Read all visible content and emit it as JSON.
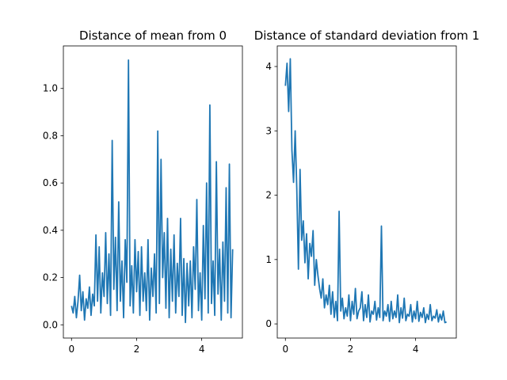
{
  "chart_data": [
    {
      "type": "line",
      "title": "Distance of mean from 0",
      "xlabel": "",
      "ylabel": "",
      "xlim": [
        -0.25,
        5.25
      ],
      "ylim": [
        -0.056,
        1.18
      ],
      "xticks": [
        0,
        2,
        4
      ],
      "xtick_labels": [
        "0",
        "2",
        "4"
      ],
      "yticks": [
        0.0,
        0.2,
        0.4,
        0.6,
        0.8,
        1.0
      ],
      "ytick_labels": [
        "0.0",
        "0.2",
        "0.4",
        "0.6",
        "0.8",
        "1.0"
      ],
      "grid": false,
      "color": "#1f77b4",
      "series": [
        {
          "x": [
            0.0,
            0.05,
            0.1,
            0.15,
            0.2,
            0.25,
            0.3,
            0.35,
            0.4,
            0.45,
            0.5,
            0.55,
            0.6,
            0.65,
            0.7,
            0.75,
            0.8,
            0.85,
            0.9,
            0.95,
            1.0,
            1.05,
            1.1,
            1.15,
            1.2,
            1.25,
            1.3,
            1.35,
            1.4,
            1.45,
            1.5,
            1.55,
            1.6,
            1.65,
            1.7,
            1.75,
            1.8,
            1.85,
            1.9,
            1.95,
            2.0,
            2.05,
            2.1,
            2.15,
            2.2,
            2.25,
            2.3,
            2.35,
            2.4,
            2.45,
            2.5,
            2.55,
            2.6,
            2.65,
            2.7,
            2.75,
            2.8,
            2.85,
            2.9,
            2.95,
            3.0,
            3.05,
            3.1,
            3.15,
            3.2,
            3.25,
            3.3,
            3.35,
            3.4,
            3.45,
            3.5,
            3.55,
            3.6,
            3.65,
            3.7,
            3.75,
            3.8,
            3.85,
            3.9,
            3.95,
            4.0,
            4.05,
            4.1,
            4.15,
            4.2,
            4.25,
            4.3,
            4.35,
            4.4,
            4.45,
            4.5,
            4.55,
            4.6,
            4.65,
            4.7,
            4.75,
            4.8,
            4.85,
            4.9,
            4.95
          ],
          "values": [
            0.08,
            0.05,
            0.12,
            0.03,
            0.1,
            0.21,
            0.06,
            0.14,
            0.02,
            0.11,
            0.07,
            0.16,
            0.04,
            0.13,
            0.08,
            0.38,
            0.1,
            0.33,
            0.05,
            0.22,
            0.12,
            0.39,
            0.09,
            0.3,
            0.04,
            0.78,
            0.15,
            0.37,
            0.06,
            0.52,
            0.1,
            0.27,
            0.03,
            0.36,
            0.18,
            1.12,
            0.08,
            0.25,
            0.05,
            0.36,
            0.14,
            0.31,
            0.04,
            0.33,
            0.1,
            0.22,
            0.06,
            0.36,
            0.02,
            0.24,
            0.12,
            0.3,
            0.05,
            0.82,
            0.09,
            0.7,
            0.2,
            0.39,
            0.07,
            0.45,
            0.03,
            0.32,
            0.1,
            0.38,
            0.05,
            0.26,
            0.12,
            0.45,
            0.04,
            0.28,
            0.01,
            0.26,
            0.08,
            0.27,
            0.03,
            0.33,
            0.15,
            0.53,
            0.06,
            0.22,
            0.02,
            0.42,
            0.11,
            0.6,
            0.05,
            0.93,
            0.09,
            0.27,
            0.04,
            0.69,
            0.13,
            0.32,
            0.02,
            0.35,
            0.1,
            0.58,
            0.05,
            0.68,
            0.03,
            0.32
          ]
        }
      ]
    },
    {
      "type": "line",
      "title": "Distance of standard deviation from 1",
      "xlabel": "",
      "ylabel": "",
      "xlim": [
        -0.25,
        5.25
      ],
      "ylim": [
        -0.22,
        4.32
      ],
      "xticks": [
        0,
        2,
        4
      ],
      "xtick_labels": [
        "0",
        "2",
        "4"
      ],
      "yticks": [
        0,
        1,
        2,
        3,
        4
      ],
      "ytick_labels": [
        "0",
        "1",
        "2",
        "3",
        "4"
      ],
      "grid": false,
      "color": "#1f77b4",
      "series": [
        {
          "x": [
            0.0,
            0.05,
            0.1,
            0.15,
            0.2,
            0.25,
            0.3,
            0.35,
            0.4,
            0.45,
            0.5,
            0.55,
            0.6,
            0.65,
            0.7,
            0.75,
            0.8,
            0.85,
            0.9,
            0.95,
            1.0,
            1.05,
            1.1,
            1.15,
            1.2,
            1.25,
            1.3,
            1.35,
            1.4,
            1.45,
            1.5,
            1.55,
            1.6,
            1.65,
            1.7,
            1.75,
            1.8,
            1.85,
            1.9,
            1.95,
            2.0,
            2.05,
            2.1,
            2.15,
            2.2,
            2.25,
            2.3,
            2.35,
            2.4,
            2.45,
            2.5,
            2.55,
            2.6,
            2.65,
            2.7,
            2.75,
            2.8,
            2.85,
            2.9,
            2.95,
            3.0,
            3.05,
            3.1,
            3.15,
            3.2,
            3.25,
            3.3,
            3.35,
            3.4,
            3.45,
            3.5,
            3.55,
            3.6,
            3.65,
            3.7,
            3.75,
            3.8,
            3.85,
            3.9,
            3.95,
            4.0,
            4.05,
            4.1,
            4.15,
            4.2,
            4.25,
            4.3,
            4.35,
            4.4,
            4.45,
            4.5,
            4.55,
            4.6,
            4.65,
            4.7,
            4.75,
            4.8,
            4.85,
            4.9,
            4.95
          ],
          "values": [
            3.7,
            4.05,
            3.3,
            4.12,
            2.7,
            2.2,
            3.0,
            2.1,
            0.85,
            2.4,
            1.3,
            1.6,
            0.95,
            1.4,
            0.7,
            1.25,
            1.05,
            1.45,
            0.6,
            1.0,
            0.75,
            0.55,
            0.4,
            0.7,
            0.25,
            0.45,
            0.3,
            0.6,
            0.15,
            0.5,
            0.1,
            0.35,
            0.05,
            1.75,
            0.2,
            0.4,
            0.08,
            0.25,
            0.12,
            0.45,
            0.05,
            0.35,
            0.15,
            0.55,
            0.08,
            0.2,
            0.25,
            0.5,
            0.05,
            0.3,
            0.1,
            0.45,
            0.03,
            0.2,
            0.15,
            0.35,
            0.06,
            0.25,
            0.1,
            1.52,
            0.05,
            0.2,
            0.12,
            0.3,
            0.04,
            0.35,
            0.08,
            0.2,
            0.1,
            0.45,
            0.02,
            0.25,
            0.09,
            0.4,
            0.05,
            0.15,
            0.12,
            0.3,
            0.03,
            0.2,
            0.08,
            0.35,
            0.04,
            0.18,
            0.1,
            0.25,
            0.02,
            0.15,
            0.07,
            0.3,
            0.05,
            0.12,
            0.09,
            0.22,
            0.03,
            0.15,
            0.06,
            0.2,
            0.02,
            0.03
          ]
        }
      ]
    }
  ]
}
